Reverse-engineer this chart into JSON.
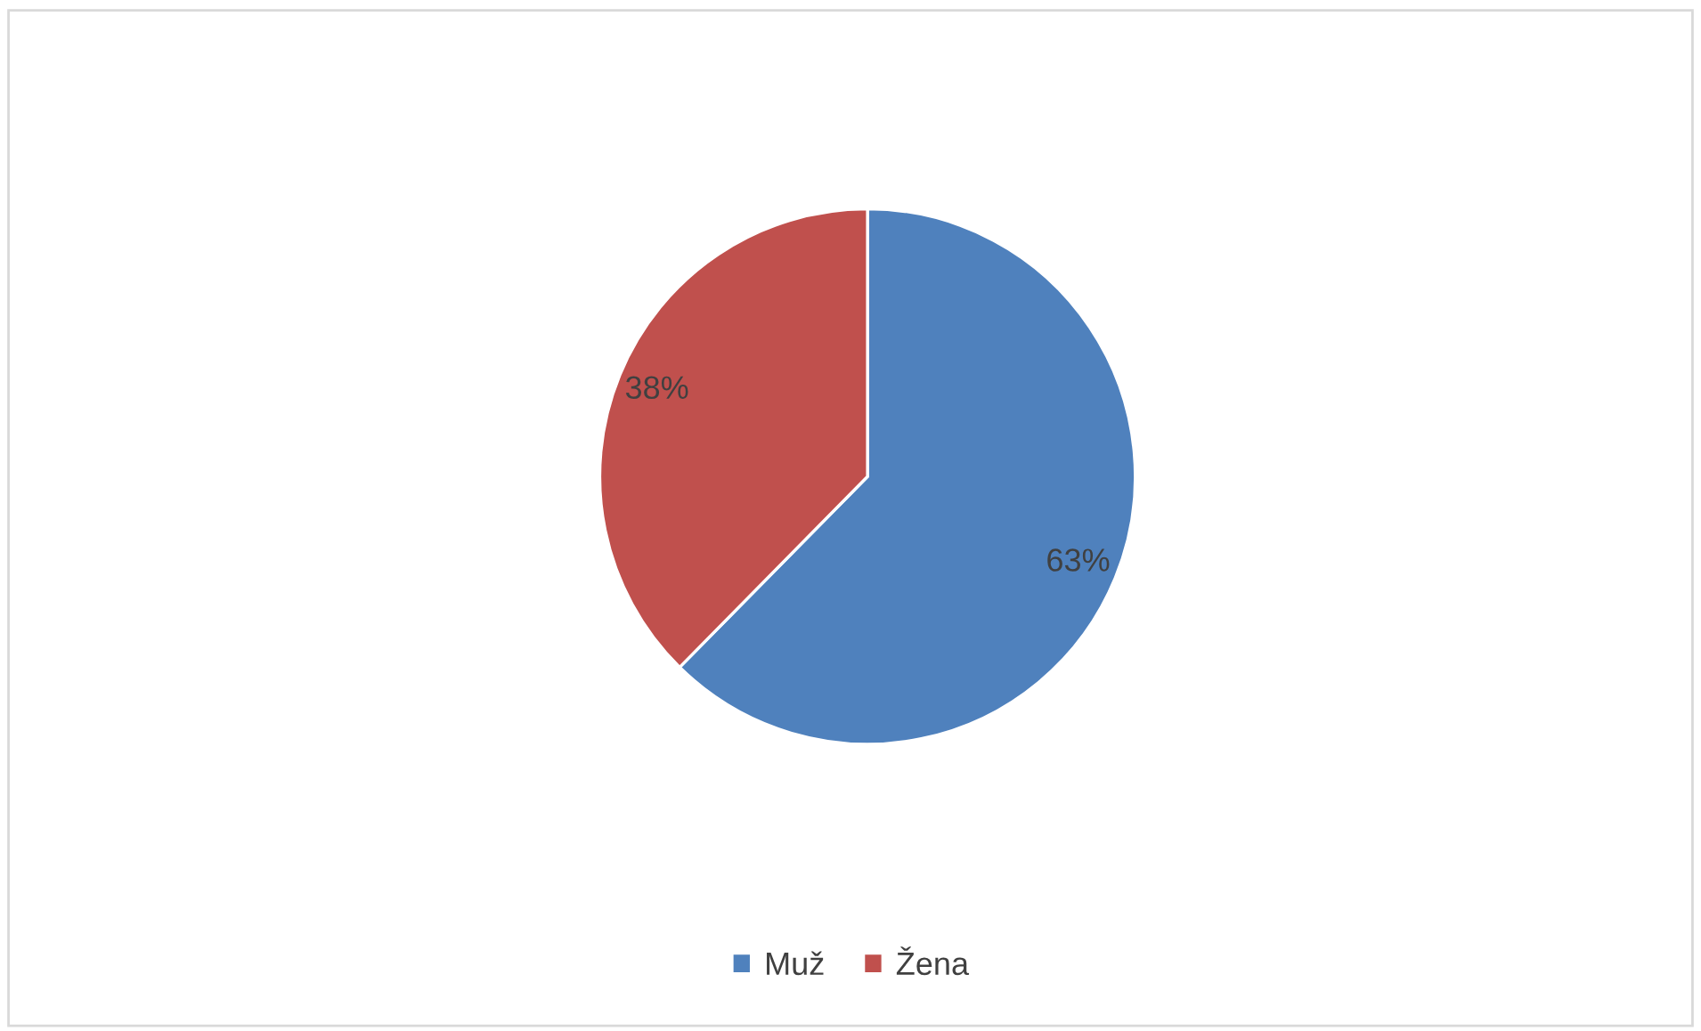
{
  "chart_data": {
    "type": "pie",
    "categories": [
      "Muž",
      "Žena"
    ],
    "values": [
      63,
      38
    ],
    "colors": [
      "#4f81bd",
      "#c0504d"
    ],
    "value_labels": [
      "63%",
      "38%"
    ],
    "legend": "bottom"
  }
}
